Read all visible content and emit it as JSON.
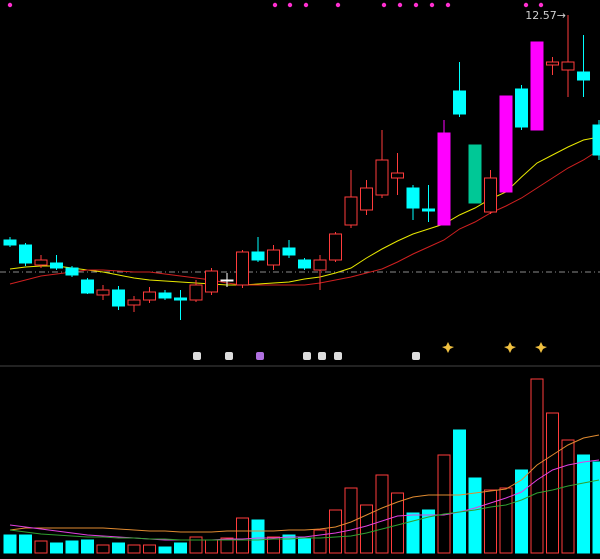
{
  "chart_data": {
    "type": "candlestick",
    "up_color": "#ff3c3c",
    "down_color": "#00ffff",
    "price": {
      "ylim": [
        9.07,
        12.72
      ],
      "open": [
        10.32,
        10.27,
        10.07,
        10.09,
        10.04,
        9.92,
        9.77,
        9.82,
        9.67,
        9.72,
        9.79,
        9.74,
        9.72,
        9.8,
        9.92,
        9.87,
        10.2,
        10.07,
        10.24,
        10.12,
        10.02,
        10.12,
        10.47,
        10.62,
        10.77,
        10.94,
        10.84,
        10.63,
        10.47,
        11.81,
        11.27,
        10.6,
        10.8,
        11.83,
        11.42,
        12.07,
        12.02,
        12.0,
        11.47
      ],
      "high": [
        10.35,
        10.29,
        10.17,
        10.17,
        10.06,
        9.94,
        9.87,
        9.86,
        9.76,
        9.85,
        9.82,
        9.82,
        9.92,
        10.04,
        9.99,
        10.22,
        10.35,
        10.27,
        10.32,
        10.14,
        10.17,
        10.4,
        11.02,
        10.92,
        11.42,
        11.19,
        10.87,
        10.87,
        11.52,
        12.1,
        11.27,
        11.02,
        11.76,
        11.87,
        12.3,
        12.15,
        12.57,
        12.37,
        11.52
      ],
      "low": [
        10.25,
        10.06,
        10.04,
        10.02,
        9.95,
        9.78,
        9.72,
        9.62,
        9.6,
        9.69,
        9.72,
        9.52,
        9.7,
        9.77,
        9.85,
        9.84,
        10.1,
        10.02,
        10.14,
        10.02,
        9.82,
        10.1,
        10.44,
        10.57,
        10.74,
        10.77,
        10.52,
        10.5,
        10.47,
        11.55,
        10.69,
        10.58,
        10.8,
        11.42,
        11.42,
        11.97,
        11.75,
        11.75,
        11.12
      ],
      "close": [
        10.27,
        10.09,
        10.12,
        10.04,
        9.97,
        9.79,
        9.82,
        9.66,
        9.72,
        9.8,
        9.74,
        9.72,
        9.87,
        10.01,
        9.92,
        10.2,
        10.12,
        10.22,
        10.17,
        10.04,
        10.12,
        10.38,
        10.75,
        10.84,
        11.12,
        10.99,
        10.64,
        10.61,
        11.39,
        11.58,
        10.69,
        10.94,
        11.76,
        11.45,
        12.3,
        12.1,
        12.1,
        11.92,
        11.17
      ],
      "colors": [
        "#00ffff",
        "#00ffff",
        "#ff3c3c",
        "#00ffff",
        "#00ffff",
        "#00ffff",
        "#ff3c3c",
        "#00ffff",
        "#ff3c3c",
        "#ff3c3c",
        "#00ffff",
        "#00ffff",
        "#ff3c3c",
        "#ff3c3c",
        "#ffffff",
        "#ff3c3c",
        "#00ffff",
        "#ff3c3c",
        "#00ffff",
        "#00ffff",
        "#ff3c3c",
        "#ff3c3c",
        "#ff3c3c",
        "#ff3c3c",
        "#ff3c3c",
        "#ff3c3c",
        "#00ffff",
        "#00ffff",
        "#ff00ff",
        "#00ffff",
        "#00c896",
        "#ff3c3c",
        "#ff00ff",
        "#00ffff",
        "#ff00ff",
        "#ff3c3c",
        "#ff3c3c",
        "#00ffff",
        "#00ffff"
      ],
      "reference_line": 10.0,
      "reference_color": "#8a8a8a",
      "averages": [
        {
          "color": "#e8e800",
          "values": [
            10.03,
            10.05,
            10.06,
            10.06,
            10.04,
            10.02,
            10.0,
            9.97,
            9.94,
            9.92,
            9.91,
            9.9,
            9.89,
            9.88,
            9.87,
            9.87,
            9.88,
            9.89,
            9.9,
            9.93,
            9.95,
            9.99,
            10.04,
            10.14,
            10.23,
            10.31,
            10.38,
            10.43,
            10.48,
            10.57,
            10.64,
            10.73,
            10.8,
            10.95,
            11.09,
            11.17,
            11.25,
            11.32,
            11.35
          ]
        },
        {
          "color": "#d02020",
          "values": [
            9.88,
            9.92,
            9.96,
            9.98,
            10.0,
            10.02,
            10.02,
            10.01,
            10.0,
            10.0,
            9.98,
            9.96,
            9.94,
            9.92,
            9.89,
            9.87,
            9.87,
            9.87,
            9.87,
            9.87,
            9.89,
            9.92,
            9.95,
            9.99,
            10.03,
            10.1,
            10.18,
            10.25,
            10.32,
            10.43,
            10.5,
            10.59,
            10.66,
            10.74,
            10.84,
            10.94,
            11.04,
            11.12,
            11.22
          ]
        }
      ],
      "max_label": {
        "value": 12.57,
        "label": "12.57→"
      }
    },
    "volume": {
      "ylim": [
        0,
        185
      ],
      "values": [
        18,
        18,
        12,
        10,
        12,
        13,
        8,
        10,
        8,
        8,
        6,
        10,
        16,
        13,
        15,
        35,
        33,
        16,
        18,
        15,
        23,
        43,
        65,
        48,
        78,
        60,
        40,
        43,
        98,
        123,
        75,
        63,
        65,
        83,
        174,
        140,
        113,
        98,
        91
      ],
      "averages": [
        {
          "color": "#e08a30",
          "values": [
            23,
            25,
            25,
            25,
            25,
            25,
            25,
            24,
            23,
            22,
            22,
            21,
            21,
            21,
            22,
            22,
            22,
            22,
            23,
            23,
            24,
            26,
            31,
            38,
            45,
            51,
            56,
            58,
            58,
            58,
            60,
            62,
            64,
            73,
            88,
            98,
            108,
            115,
            118
          ]
        },
        {
          "color": "#e040e0",
          "values": [
            28,
            26,
            24,
            22,
            20,
            18,
            17,
            16,
            15,
            14,
            13,
            13,
            13,
            13,
            14,
            14,
            15,
            15,
            16,
            16,
            18,
            20,
            23,
            27,
            32,
            37,
            38,
            38,
            38,
            41,
            45,
            50,
            55,
            61,
            73,
            83,
            88,
            91,
            93
          ]
        },
        {
          "color": "#30a030",
          "values": [
            23,
            21,
            19,
            18,
            17,
            16,
            16,
            15,
            15,
            14,
            14,
            13,
            13,
            13,
            13,
            13,
            13,
            14,
            14,
            15,
            15,
            16,
            17,
            20,
            24,
            28,
            32,
            36,
            39,
            41,
            43,
            46,
            48,
            53,
            60,
            63,
            67,
            70,
            73
          ]
        }
      ]
    }
  }
}
